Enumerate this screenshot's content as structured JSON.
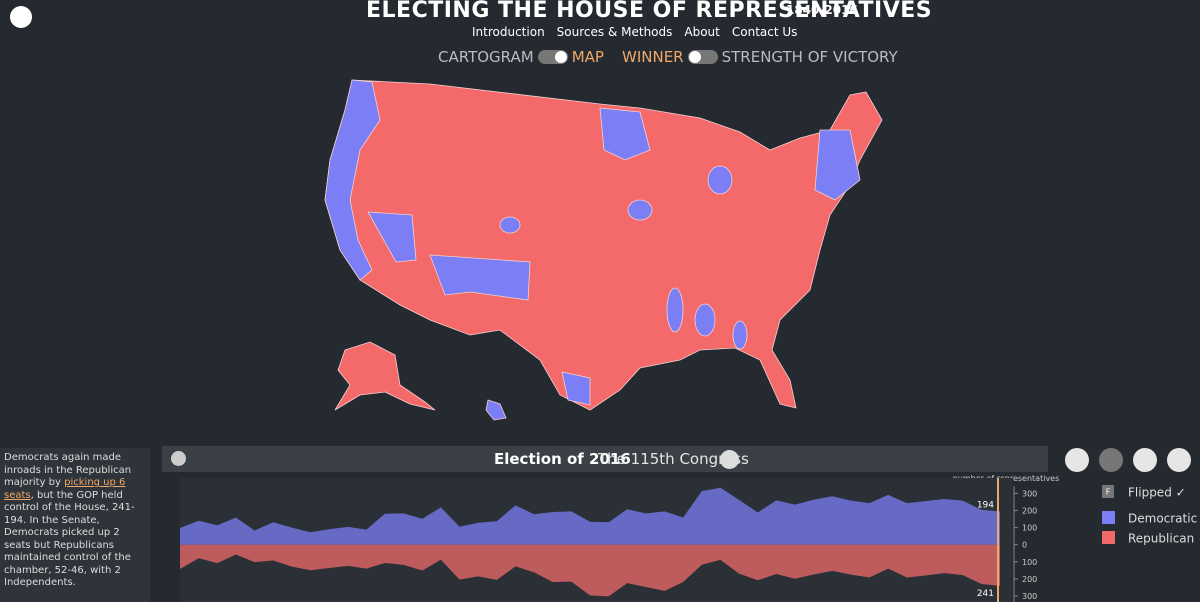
{
  "header": {
    "title": "ELECTING THE HOUSE OF REPRESENTATIVES",
    "years": "1840-2016",
    "nav": [
      "Introduction",
      "Sources & Methods",
      "About",
      "Contact Us"
    ],
    "toggle_left": {
      "off": "CARTOGRAM",
      "on": "MAP"
    },
    "toggle_right": {
      "on": "WINNER",
      "off": "STRENGTH OF VICTORY"
    }
  },
  "sidebar": {
    "text_before": "Democrats again made inroads in the Republican majority by ",
    "link": "picking up 6 seats",
    "text_after": ", but the GOP held control of the House, 241-194. In the Senate, Democrats picked up 2 seats but Republicans maintained control of the chamber, 52-46, with 2 Independents."
  },
  "panel": {
    "election": "Election of 2016",
    "congress": "The 115th Congress"
  },
  "legend": {
    "flipped_marker": "F",
    "flipped": "Flipped ✓",
    "democratic": "Democratic ✓",
    "republican": "Republican ✓"
  },
  "chart_data": {
    "type": "area",
    "y_label": "number of representatives",
    "ylim": [
      -335,
      390
    ],
    "yticks": [
      0,
      100,
      200,
      300
    ],
    "y2lim": [
      335,
      -390
    ],
    "y2ticks": [
      100,
      200,
      300
    ],
    "series": [
      {
        "name": "Democratic",
        "color": "#7b7ef5",
        "values": [
          98,
          140,
          113,
          159,
          83,
          131,
          100,
          73,
          90,
          104,
          88,
          181,
          183,
          152,
          218,
          105,
          128,
          137,
          230,
          178,
          191,
          195,
          134,
          131,
          207,
          183,
          195,
          159,
          313,
          333,
          262,
          188,
          259,
          234,
          263,
          283,
          258,
          243,
          291,
          243,
          255,
          267,
          258,
          204,
          194
        ]
      },
      {
        "name": "Republican",
        "axis": "y2",
        "color": "#f06a6a",
        "values": [
          142,
          79,
          108,
          57,
          102,
          92,
          128,
          149,
          136,
          124,
          140,
          107,
          118,
          151,
          88,
          204,
          185,
          206,
          127,
          162,
          219,
          216,
          296,
          302,
          225,
          247,
          270,
          218,
          117,
          89,
          169,
          208,
          171,
          199,
          174,
          153,
          175,
          192,
          140,
          192,
          180,
          166,
          177,
          230,
          241
        ]
      }
    ]
  }
}
